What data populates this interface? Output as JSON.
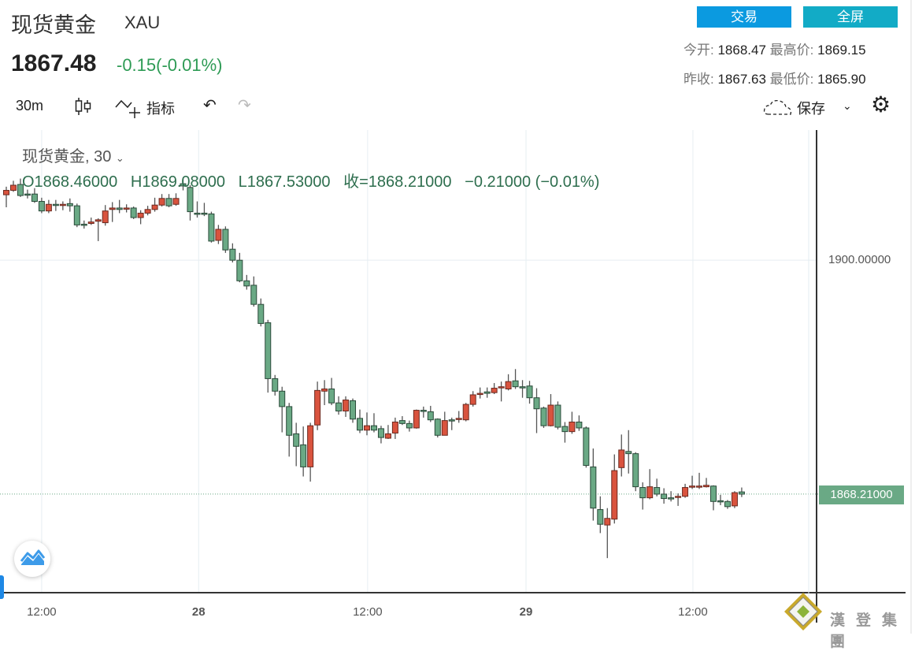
{
  "header": {
    "title": "现货黄金",
    "symbol": "XAU",
    "price": "1867.48",
    "change": "-0.15(-0.01%)"
  },
  "buttons": {
    "trade": "交易",
    "fullscreen": "全屏"
  },
  "stats": {
    "open_label": "今开:",
    "open": "1868.47",
    "high_label": "最高价:",
    "high": "1869.15",
    "prev_close_label": "昨收:",
    "prev_close": "1867.63",
    "low_label": "最低价:",
    "low": "1865.90"
  },
  "toolbar": {
    "interval": "30m",
    "indicators": "指标",
    "save": "保存"
  },
  "legend": {
    "title": "现货黄金, 30",
    "ohlc": "O1868.46000   H1869.08000   L1867.53000   收=1868.21000   −0.21000 (−0.01%)"
  },
  "watermark": "漢登集團",
  "colors": {
    "up": "#d9533e",
    "down": "#6aa985",
    "trade_btn": "#0b9ae0",
    "fullscreen_btn": "#12abc6",
    "change": "#2e9b55"
  },
  "chart_data": {
    "type": "candlestick",
    "ylim": [
      1854.8,
      1917.7
    ],
    "y_ticks": [
      {
        "value": 1900,
        "label": "1900.00000"
      }
    ],
    "last_price": {
      "value": 1868.21,
      "label": "1868.21000"
    },
    "x_ticks": [
      {
        "label": "12:00",
        "index": 5
      },
      {
        "label": "28",
        "index": 27.2
      },
      {
        "label": "12:00",
        "index": 51.1
      },
      {
        "label": "29",
        "index": 73.5
      },
      {
        "label": "12:00",
        "index": 97.1
      }
    ],
    "ohlc": [
      [
        1908.9,
        1910.0,
        1907.2,
        1909.5
      ],
      [
        1909.5,
        1910.8,
        1909.3,
        1910.2
      ],
      [
        1910.3,
        1911.1,
        1908.6,
        1908.8
      ],
      [
        1909.0,
        1909.6,
        1908.4,
        1908.9
      ],
      [
        1909.0,
        1909.8,
        1907.8,
        1908.0
      ],
      [
        1908.0,
        1908.5,
        1906.4,
        1906.7
      ],
      [
        1906.7,
        1908.2,
        1906.4,
        1907.6
      ],
      [
        1907.6,
        1908.2,
        1906.7,
        1907.5
      ],
      [
        1907.5,
        1908.0,
        1906.8,
        1907.6
      ],
      [
        1907.7,
        1908.4,
        1906.6,
        1907.4
      ],
      [
        1907.4,
        1907.7,
        1904.5,
        1904.8
      ],
      [
        1904.9,
        1905.4,
        1904.3,
        1904.8
      ],
      [
        1905.0,
        1905.8,
        1904.8,
        1905.2
      ],
      [
        1905.3,
        1905.7,
        1902.6,
        1905.5
      ],
      [
        1905.1,
        1907.5,
        1904.7,
        1906.7
      ],
      [
        1906.9,
        1907.9,
        1905.2,
        1907.1
      ],
      [
        1907.1,
        1908.2,
        1906.4,
        1906.9
      ],
      [
        1907.0,
        1907.6,
        1906.5,
        1907.1
      ],
      [
        1907.1,
        1907.3,
        1905.6,
        1905.8
      ],
      [
        1905.8,
        1906.8,
        1904.9,
        1906.4
      ],
      [
        1906.4,
        1907.4,
        1906.1,
        1906.9
      ],
      [
        1906.9,
        1908.5,
        1906.6,
        1907.5
      ],
      [
        1907.5,
        1909.0,
        1907.3,
        1908.4
      ],
      [
        1908.4,
        1909.0,
        1907.2,
        1907.4
      ],
      [
        1907.6,
        1909.1,
        1907.4,
        1908.4
      ],
      [
        1910.4,
        1911.2,
        1909.5,
        1910.1
      ],
      [
        1909.9,
        1910.2,
        1905.4,
        1906.6
      ],
      [
        1906.4,
        1908.0,
        1905.8,
        1906.3
      ],
      [
        1906.4,
        1907.8,
        1906.0,
        1906.3
      ],
      [
        1906.3,
        1906.6,
        1902.4,
        1902.6
      ],
      [
        1902.7,
        1904.8,
        1902.2,
        1904.2
      ],
      [
        1904.2,
        1904.6,
        1901.0,
        1901.4
      ],
      [
        1901.5,
        1902.3,
        1899.7,
        1900.0
      ],
      [
        1900.0,
        1901.0,
        1897.0,
        1897.2
      ],
      [
        1897.2,
        1898.0,
        1896.0,
        1896.5
      ],
      [
        1896.6,
        1897.8,
        1893.7,
        1894.0
      ],
      [
        1894.0,
        1894.8,
        1891.0,
        1891.4
      ],
      [
        1891.5,
        1891.9,
        1882.0,
        1883.9
      ],
      [
        1883.9,
        1884.4,
        1881.6,
        1882.2
      ],
      [
        1882.2,
        1882.8,
        1876.6,
        1880.1
      ],
      [
        1880.1,
        1880.6,
        1873.3,
        1876.2
      ],
      [
        1876.4,
        1877.9,
        1872.0,
        1874.7
      ],
      [
        1874.9,
        1877.4,
        1870.6,
        1871.9
      ],
      [
        1871.9,
        1877.9,
        1869.9,
        1877.5
      ],
      [
        1877.6,
        1883.5,
        1876.9,
        1882.3
      ],
      [
        1882.2,
        1883.7,
        1880.3,
        1882.5
      ],
      [
        1882.5,
        1884.0,
        1880.3,
        1880.6
      ],
      [
        1880.6,
        1881.5,
        1879.0,
        1879.5
      ],
      [
        1879.5,
        1881.5,
        1878.7,
        1881.0
      ],
      [
        1880.9,
        1881.2,
        1877.9,
        1878.4
      ],
      [
        1878.5,
        1879.7,
        1876.5,
        1876.9
      ],
      [
        1876.9,
        1879.3,
        1876.2,
        1877.5
      ],
      [
        1877.5,
        1879.2,
        1876.6,
        1876.9
      ],
      [
        1877.1,
        1877.5,
        1875.1,
        1875.9
      ],
      [
        1875.8,
        1877.6,
        1875.7,
        1876.4
      ],
      [
        1876.5,
        1878.6,
        1875.7,
        1878.0
      ],
      [
        1878.2,
        1878.8,
        1877.6,
        1877.8
      ],
      [
        1877.8,
        1878.2,
        1876.7,
        1877.2
      ],
      [
        1877.2,
        1879.7,
        1877.1,
        1879.6
      ],
      [
        1879.6,
        1880.1,
        1878.6,
        1879.5
      ],
      [
        1879.4,
        1880.2,
        1878.0,
        1878.3
      ],
      [
        1878.4,
        1878.5,
        1875.9,
        1876.2
      ],
      [
        1876.2,
        1879.4,
        1876.2,
        1878.2
      ],
      [
        1878.3,
        1878.6,
        1876.9,
        1878.2
      ],
      [
        1878.4,
        1879.5,
        1877.9,
        1878.5
      ],
      [
        1878.3,
        1880.6,
        1878.1,
        1880.4
      ],
      [
        1880.4,
        1882.2,
        1880.1,
        1881.7
      ],
      [
        1881.8,
        1882.7,
        1881.2,
        1881.9
      ],
      [
        1882.1,
        1882.7,
        1881.3,
        1881.9
      ],
      [
        1882.0,
        1883.3,
        1881.8,
        1882.6
      ],
      [
        1882.7,
        1883.5,
        1880.8,
        1882.8
      ],
      [
        1882.5,
        1884.5,
        1882.3,
        1883.5
      ],
      [
        1883.6,
        1885.2,
        1882.5,
        1882.8
      ],
      [
        1882.8,
        1883.7,
        1881.3,
        1882.7
      ],
      [
        1882.9,
        1883.6,
        1880.5,
        1881.3
      ],
      [
        1881.3,
        1882.6,
        1876.5,
        1879.8
      ],
      [
        1879.9,
        1880.1,
        1877.2,
        1877.5
      ],
      [
        1877.5,
        1881.8,
        1877.4,
        1880.3
      ],
      [
        1880.3,
        1880.8,
        1877.0,
        1877.3
      ],
      [
        1877.4,
        1878.0,
        1875.2,
        1876.7
      ],
      [
        1876.7,
        1879.4,
        1876.4,
        1878.0
      ],
      [
        1878.0,
        1878.9,
        1876.8,
        1877.2
      ],
      [
        1877.2,
        1877.4,
        1871.8,
        1872.1
      ],
      [
        1871.9,
        1874.4,
        1864.6,
        1866.3
      ],
      [
        1866.1,
        1867.9,
        1862.9,
        1864.1
      ],
      [
        1864.0,
        1866.3,
        1859.5,
        1864.9
      ],
      [
        1864.8,
        1873.6,
        1864.2,
        1871.4
      ],
      [
        1871.8,
        1876.3,
        1870.6,
        1874.2
      ],
      [
        1874.0,
        1876.9,
        1871.0,
        1873.7
      ],
      [
        1873.7,
        1873.9,
        1868.6,
        1869.2
      ],
      [
        1869.1,
        1869.8,
        1866.1,
        1867.7
      ],
      [
        1867.7,
        1871.6,
        1867.5,
        1869.2
      ],
      [
        1869.1,
        1870.3,
        1867.9,
        1868.2
      ],
      [
        1868.2,
        1869.0,
        1866.9,
        1867.6
      ],
      [
        1867.7,
        1868.6,
        1867.2,
        1867.6
      ],
      [
        1867.8,
        1868.3,
        1866.6,
        1867.9
      ],
      [
        1867.9,
        1869.6,
        1867.7,
        1869.1
      ],
      [
        1869.2,
        1870.7,
        1868.9,
        1869.3
      ],
      [
        1869.2,
        1871.1,
        1868.9,
        1869.3
      ],
      [
        1869.2,
        1870.4,
        1869.1,
        1869.4
      ],
      [
        1869.3,
        1869.4,
        1866.0,
        1867.2
      ],
      [
        1867.3,
        1868.1,
        1866.7,
        1867.2
      ],
      [
        1867.2,
        1867.4,
        1866.2,
        1866.5
      ],
      [
        1866.6,
        1868.6,
        1866.3,
        1868.4
      ],
      [
        1868.5,
        1869.1,
        1867.8,
        1868.2
      ]
    ]
  }
}
